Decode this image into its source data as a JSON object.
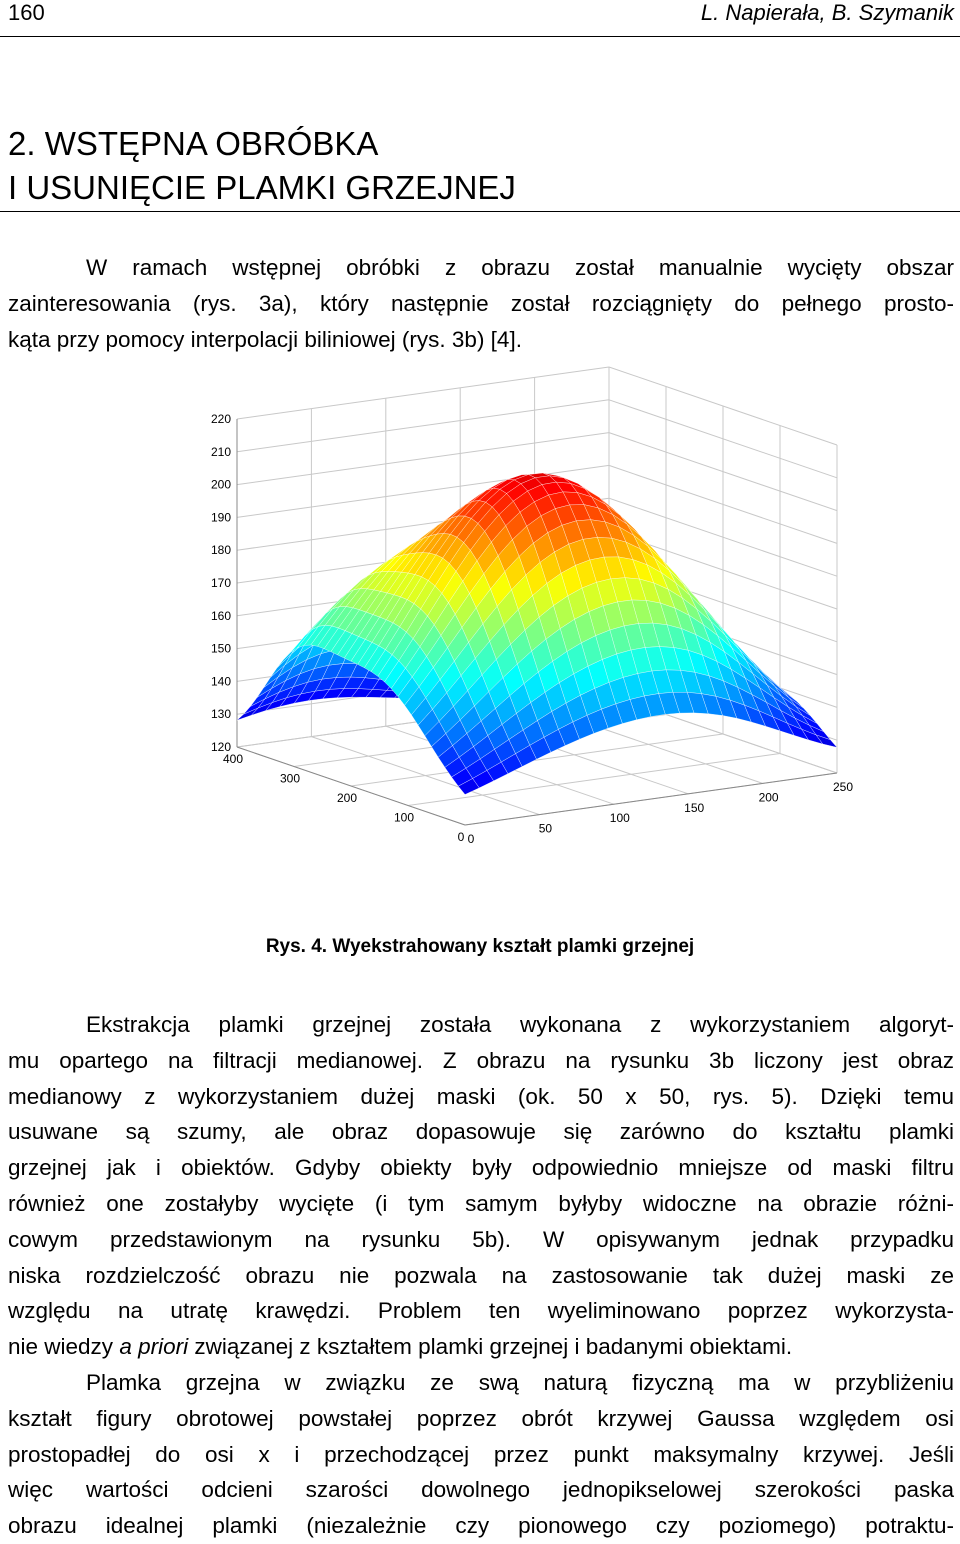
{
  "header": {
    "page_number": "160",
    "authors": "L. Napierała, B. Szymanik"
  },
  "section": {
    "title_line1": "2. WSTĘPNA OBRÓBKA",
    "title_line2": "I USUNIĘCIE PLAMKI GRZEJNEJ"
  },
  "para1": [
    "W ramach wstępnej obróbki z obrazu został manualnie wycięty obszar",
    "zainteresowania (rys. 3a), który następnie został rozciągnięty do pełnego prosto-",
    "kąta przy pomocy interpolacji biliniowej (rys. 3b) [4]."
  ],
  "figure": {
    "caption": "Rys. 4. Wyekstrahowany kształt plamki grzejnej"
  },
  "chart_data": {
    "type": "surface3d",
    "title": "",
    "zlabel": "",
    "z_ticks": [
      "220",
      "210",
      "200",
      "190",
      "180",
      "170",
      "160",
      "150",
      "140",
      "130",
      "120"
    ],
    "z_range": [
      120,
      220
    ],
    "x_ticks": [
      "0",
      "100",
      "200",
      "300",
      "400"
    ],
    "x_range": [
      0,
      400
    ],
    "y_ticks": [
      "0",
      "50",
      "100",
      "150",
      "200",
      "250"
    ],
    "y_range": [
      0,
      250
    ],
    "colormap": "jet",
    "grid": true,
    "peak_value": 213,
    "colormap_colors": [
      "#00008f",
      "#0000ff",
      "#00ffff",
      "#ffff00",
      "#ff0000",
      "#800000"
    ]
  },
  "para2": [
    "Ekstrakcja plamki grzejnej została wykonana z wykorzystaniem algoryt-",
    "mu opartego na filtracji  medianowej. Z obrazu na rysunku 3b liczony jest obraz",
    "medianowy z wykorzystaniem dużej maski (ok. 50 x 50, rys. 5). Dzięki temu",
    "usuwane są szumy, ale obraz dopasowuje się zarówno do kształtu plamki",
    "grzejnej jak i obiektów. Gdyby obiekty były odpowiednio mniejsze od maski filtru",
    "również one zostałyby wycięte (i tym samym byłyby widoczne na obrazie różni-",
    "cowym przedstawionym na rysunku 5b). W opisywanym jednak przypadku",
    "niska rozdzielczość obrazu nie pozwala na zastosowanie tak dużej maski ze",
    "względu na utratę krawędzi. Problem ten wyeliminowano poprzez wykorzysta-"
  ],
  "para2_last": {
    "before": "nie wiedzy ",
    "italic": "a priori",
    "after": " związanej z kształtem plamki grzejnej i badanymi obiektami."
  },
  "para3": [
    "Plamka grzejna w związku ze swą naturą fizyczną ma w przybliżeniu",
    "kształt figury obrotowej powstałej poprzez obrót krzywej Gaussa względem osi",
    "prostopadłej do osi x i przechodzącej przez punkt maksymalny krzywej. Jeśli",
    "więc wartości odcieni szarości dowolnego jednopikselowej szerokości paska",
    "obrazu idealnej plamki (niezależnie czy pionowego czy poziomego) potraktu-"
  ]
}
